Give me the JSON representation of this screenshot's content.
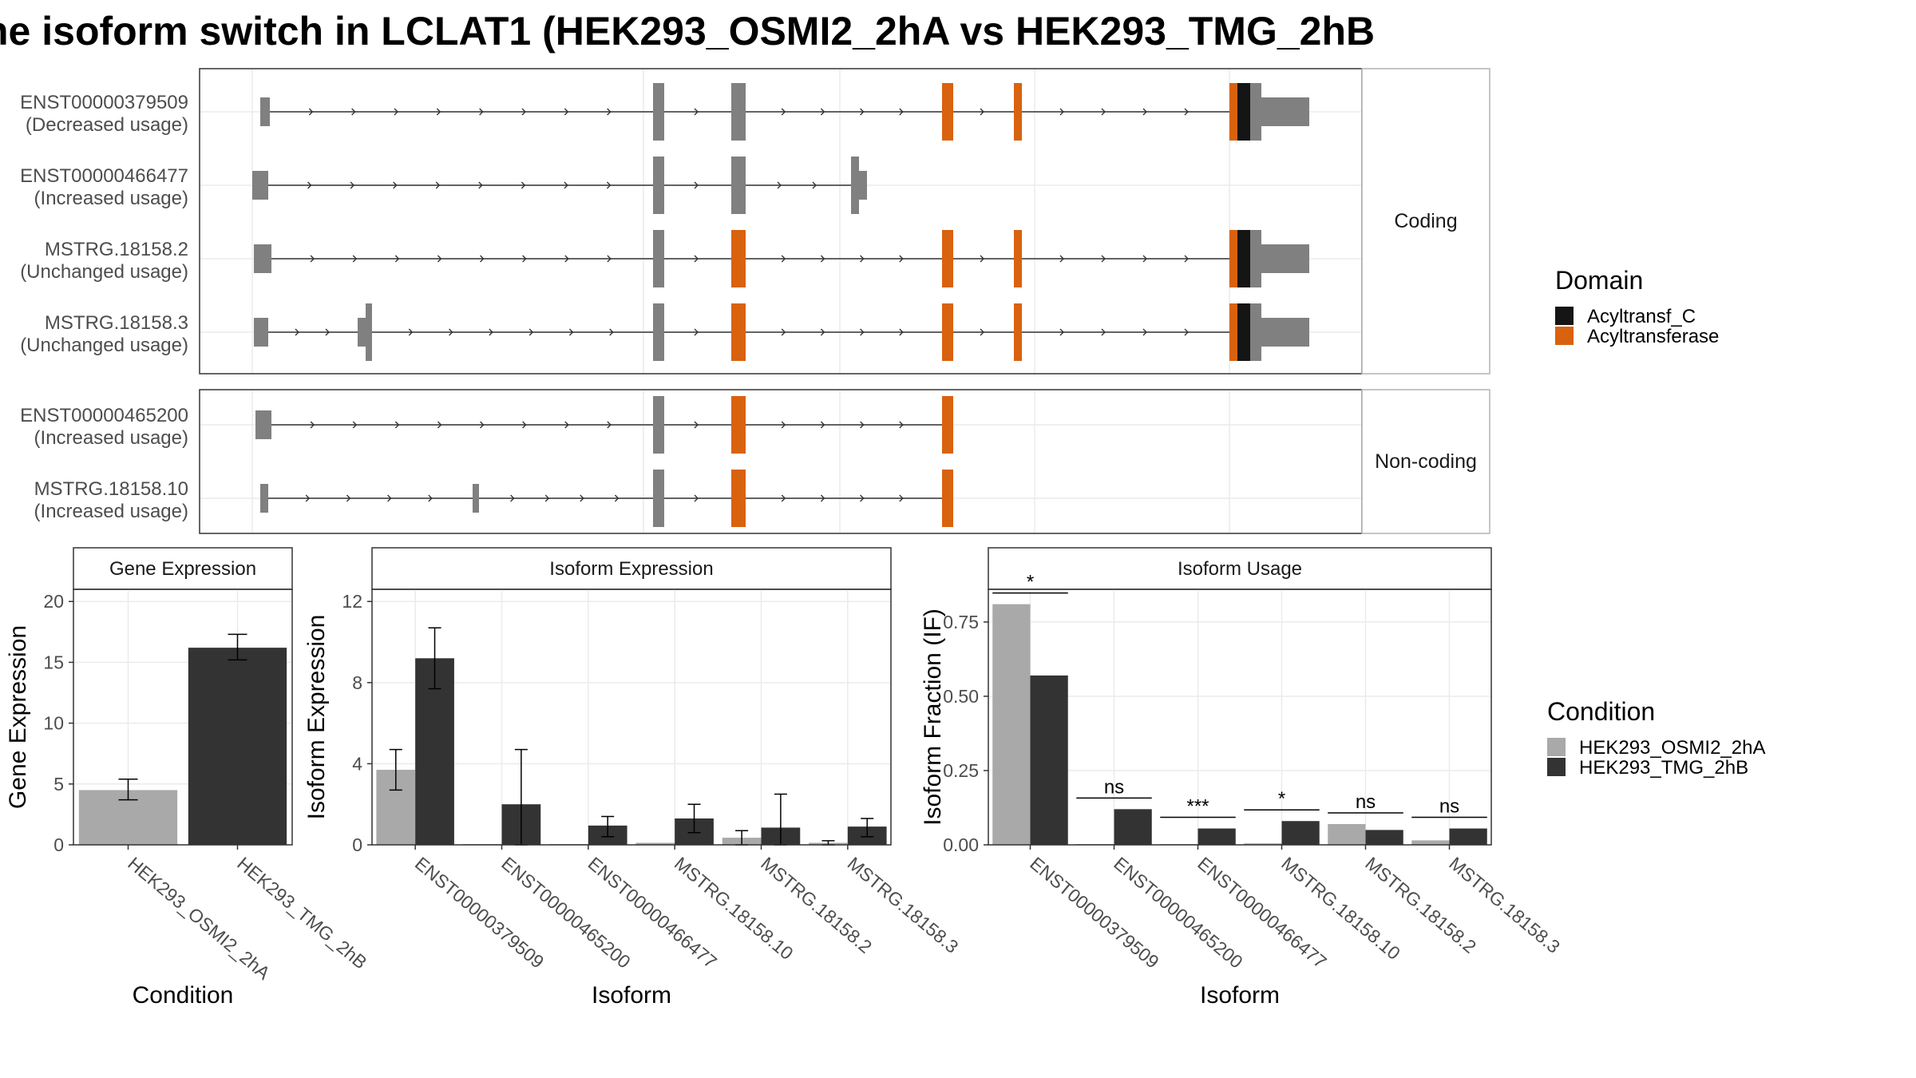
{
  "title": "he isoform switch in LCLAT1 (HEK293_OSMI2_2hA vs HEK293_TMG_2hB",
  "colors": {
    "condA": "#a9a9a9",
    "condB": "#333333",
    "exon": "#808080",
    "acyltransf_c": "#151515",
    "acyltransferase": "#d9620f"
  },
  "structure": {
    "groups": [
      {
        "label": "Coding",
        "transcripts": [
          {
            "name": "ENST00000379509",
            "usage": "(Decreased usage)"
          },
          {
            "name": "ENST00000466477",
            "usage": "(Increased usage)"
          },
          {
            "name": "MSTRG.18158.2",
            "usage": "(Unchanged usage)"
          },
          {
            "name": "MSTRG.18158.3",
            "usage": "(Unchanged usage)"
          }
        ]
      },
      {
        "label": "Non-coding",
        "transcripts": [
          {
            "name": "ENST00000465200",
            "usage": "(Increased usage)"
          },
          {
            "name": "MSTRG.18158.10",
            "usage": "(Increased usage)"
          }
        ]
      }
    ]
  },
  "domain_legend": {
    "title": "Domain",
    "items": [
      {
        "label": "Acyltransf_C",
        "color": "#151515"
      },
      {
        "label": "Acyltransferase",
        "color": "#d9620f"
      }
    ]
  },
  "condition_legend": {
    "title": "Condition",
    "items": [
      {
        "label": "HEK293_OSMI2_2hA",
        "color": "#a9a9a9"
      },
      {
        "label": "HEK293_TMG_2hB",
        "color": "#333333"
      }
    ]
  },
  "chart_data": [
    {
      "type": "bar",
      "title": "Gene Expression",
      "xlabel": "Condition",
      "ylabel": "Gene Expression",
      "ylim": [
        0,
        21
      ],
      "yticks": [
        "0",
        "5",
        "10",
        "15",
        "20"
      ],
      "categories": [
        "HEK293_OSMI2_2hA",
        "HEK293_TMG_2hB"
      ],
      "values": [
        4.5,
        16.2
      ],
      "errors": [
        [
          3.7,
          5.4
        ],
        [
          15.2,
          17.3
        ]
      ]
    },
    {
      "type": "bar",
      "title": "Isoform Expression",
      "xlabel": "Isoform",
      "ylabel": "Isoform Expression",
      "ylim": [
        0,
        12.6
      ],
      "yticks": [
        "0",
        "4",
        "8",
        "12"
      ],
      "categories": [
        "ENST00000379509",
        "ENST00000465200",
        "ENST00000466477",
        "MSTRG.18158.10",
        "MSTRG.18158.2",
        "MSTRG.18158.3"
      ],
      "series": [
        {
          "name": "HEK293_OSMI2_2hA",
          "values": [
            3.7,
            0.02,
            0.02,
            0.1,
            0.35,
            0.1
          ],
          "errors": [
            [
              2.7,
              4.7
            ],
            null,
            null,
            null,
            [
              0.0,
              0.7
            ],
            [
              0.0,
              0.2
            ]
          ]
        },
        {
          "name": "HEK293_TMG_2hB",
          "values": [
            9.2,
            2.0,
            0.95,
            1.3,
            0.85,
            0.9
          ],
          "errors": [
            [
              7.7,
              10.7
            ],
            [
              0.0,
              4.7
            ],
            [
              0.4,
              1.4
            ],
            [
              0.6,
              2.0
            ],
            [
              0.0,
              2.5
            ],
            [
              0.4,
              1.3
            ]
          ]
        }
      ]
    },
    {
      "type": "bar",
      "title": "Isoform Usage",
      "xlabel": "Isoform",
      "ylabel": "Isoform Fraction (IF)",
      "ylim": [
        0,
        0.86
      ],
      "yticks": [
        "0.00",
        "0.25",
        "0.50",
        "0.75"
      ],
      "categories": [
        "ENST00000379509",
        "ENST00000465200",
        "ENST00000466477",
        "MSTRG.18158.10",
        "MSTRG.18158.2",
        "MSTRG.18158.3"
      ],
      "series": [
        {
          "name": "HEK293_OSMI2_2hA",
          "values": [
            0.81,
            0.0,
            0.0,
            0.005,
            0.07,
            0.015
          ]
        },
        {
          "name": "HEK293_TMG_2hB",
          "values": [
            0.57,
            0.12,
            0.055,
            0.08,
            0.05,
            0.055
          ]
        }
      ],
      "significance": [
        "*",
        "ns",
        "***",
        "*",
        "ns",
        "ns"
      ]
    }
  ]
}
